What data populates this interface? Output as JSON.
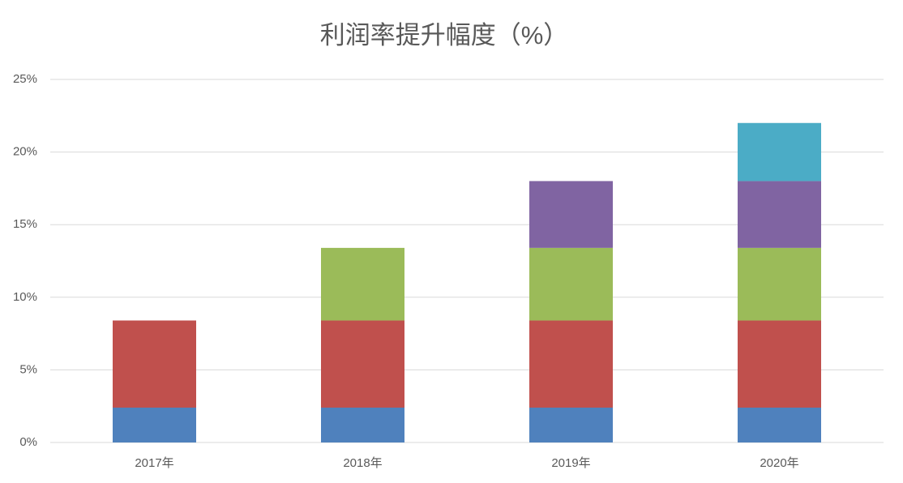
{
  "chart_data": {
    "type": "bar",
    "stacked": true,
    "title": "利润率提升幅度（%）",
    "categories": [
      "2017年",
      "2018年",
      "2019年",
      "2020年"
    ],
    "series": [
      {
        "color": "#4f81bd",
        "values": [
          2.4,
          2.4,
          2.4,
          2.4
        ]
      },
      {
        "color": "#c0504d",
        "values": [
          6.0,
          6.0,
          6.0,
          6.0
        ]
      },
      {
        "color": "#9bbb59",
        "values": [
          null,
          5.0,
          5.0,
          5.0
        ]
      },
      {
        "color": "#8064a2",
        "values": [
          null,
          null,
          4.6,
          4.6
        ]
      },
      {
        "color": "#4bacc6",
        "values": [
          null,
          null,
          null,
          4.0
        ]
      }
    ],
    "ylim": [
      0,
      25
    ],
    "yticks": [
      {
        "value": 0,
        "label": "0%"
      },
      {
        "value": 5,
        "label": "5%"
      },
      {
        "value": 10,
        "label": "10%"
      },
      {
        "value": 15,
        "label": "15%"
      },
      {
        "value": 20,
        "label": "20%"
      },
      {
        "value": 25,
        "label": "25%"
      }
    ],
    "grid": true
  }
}
